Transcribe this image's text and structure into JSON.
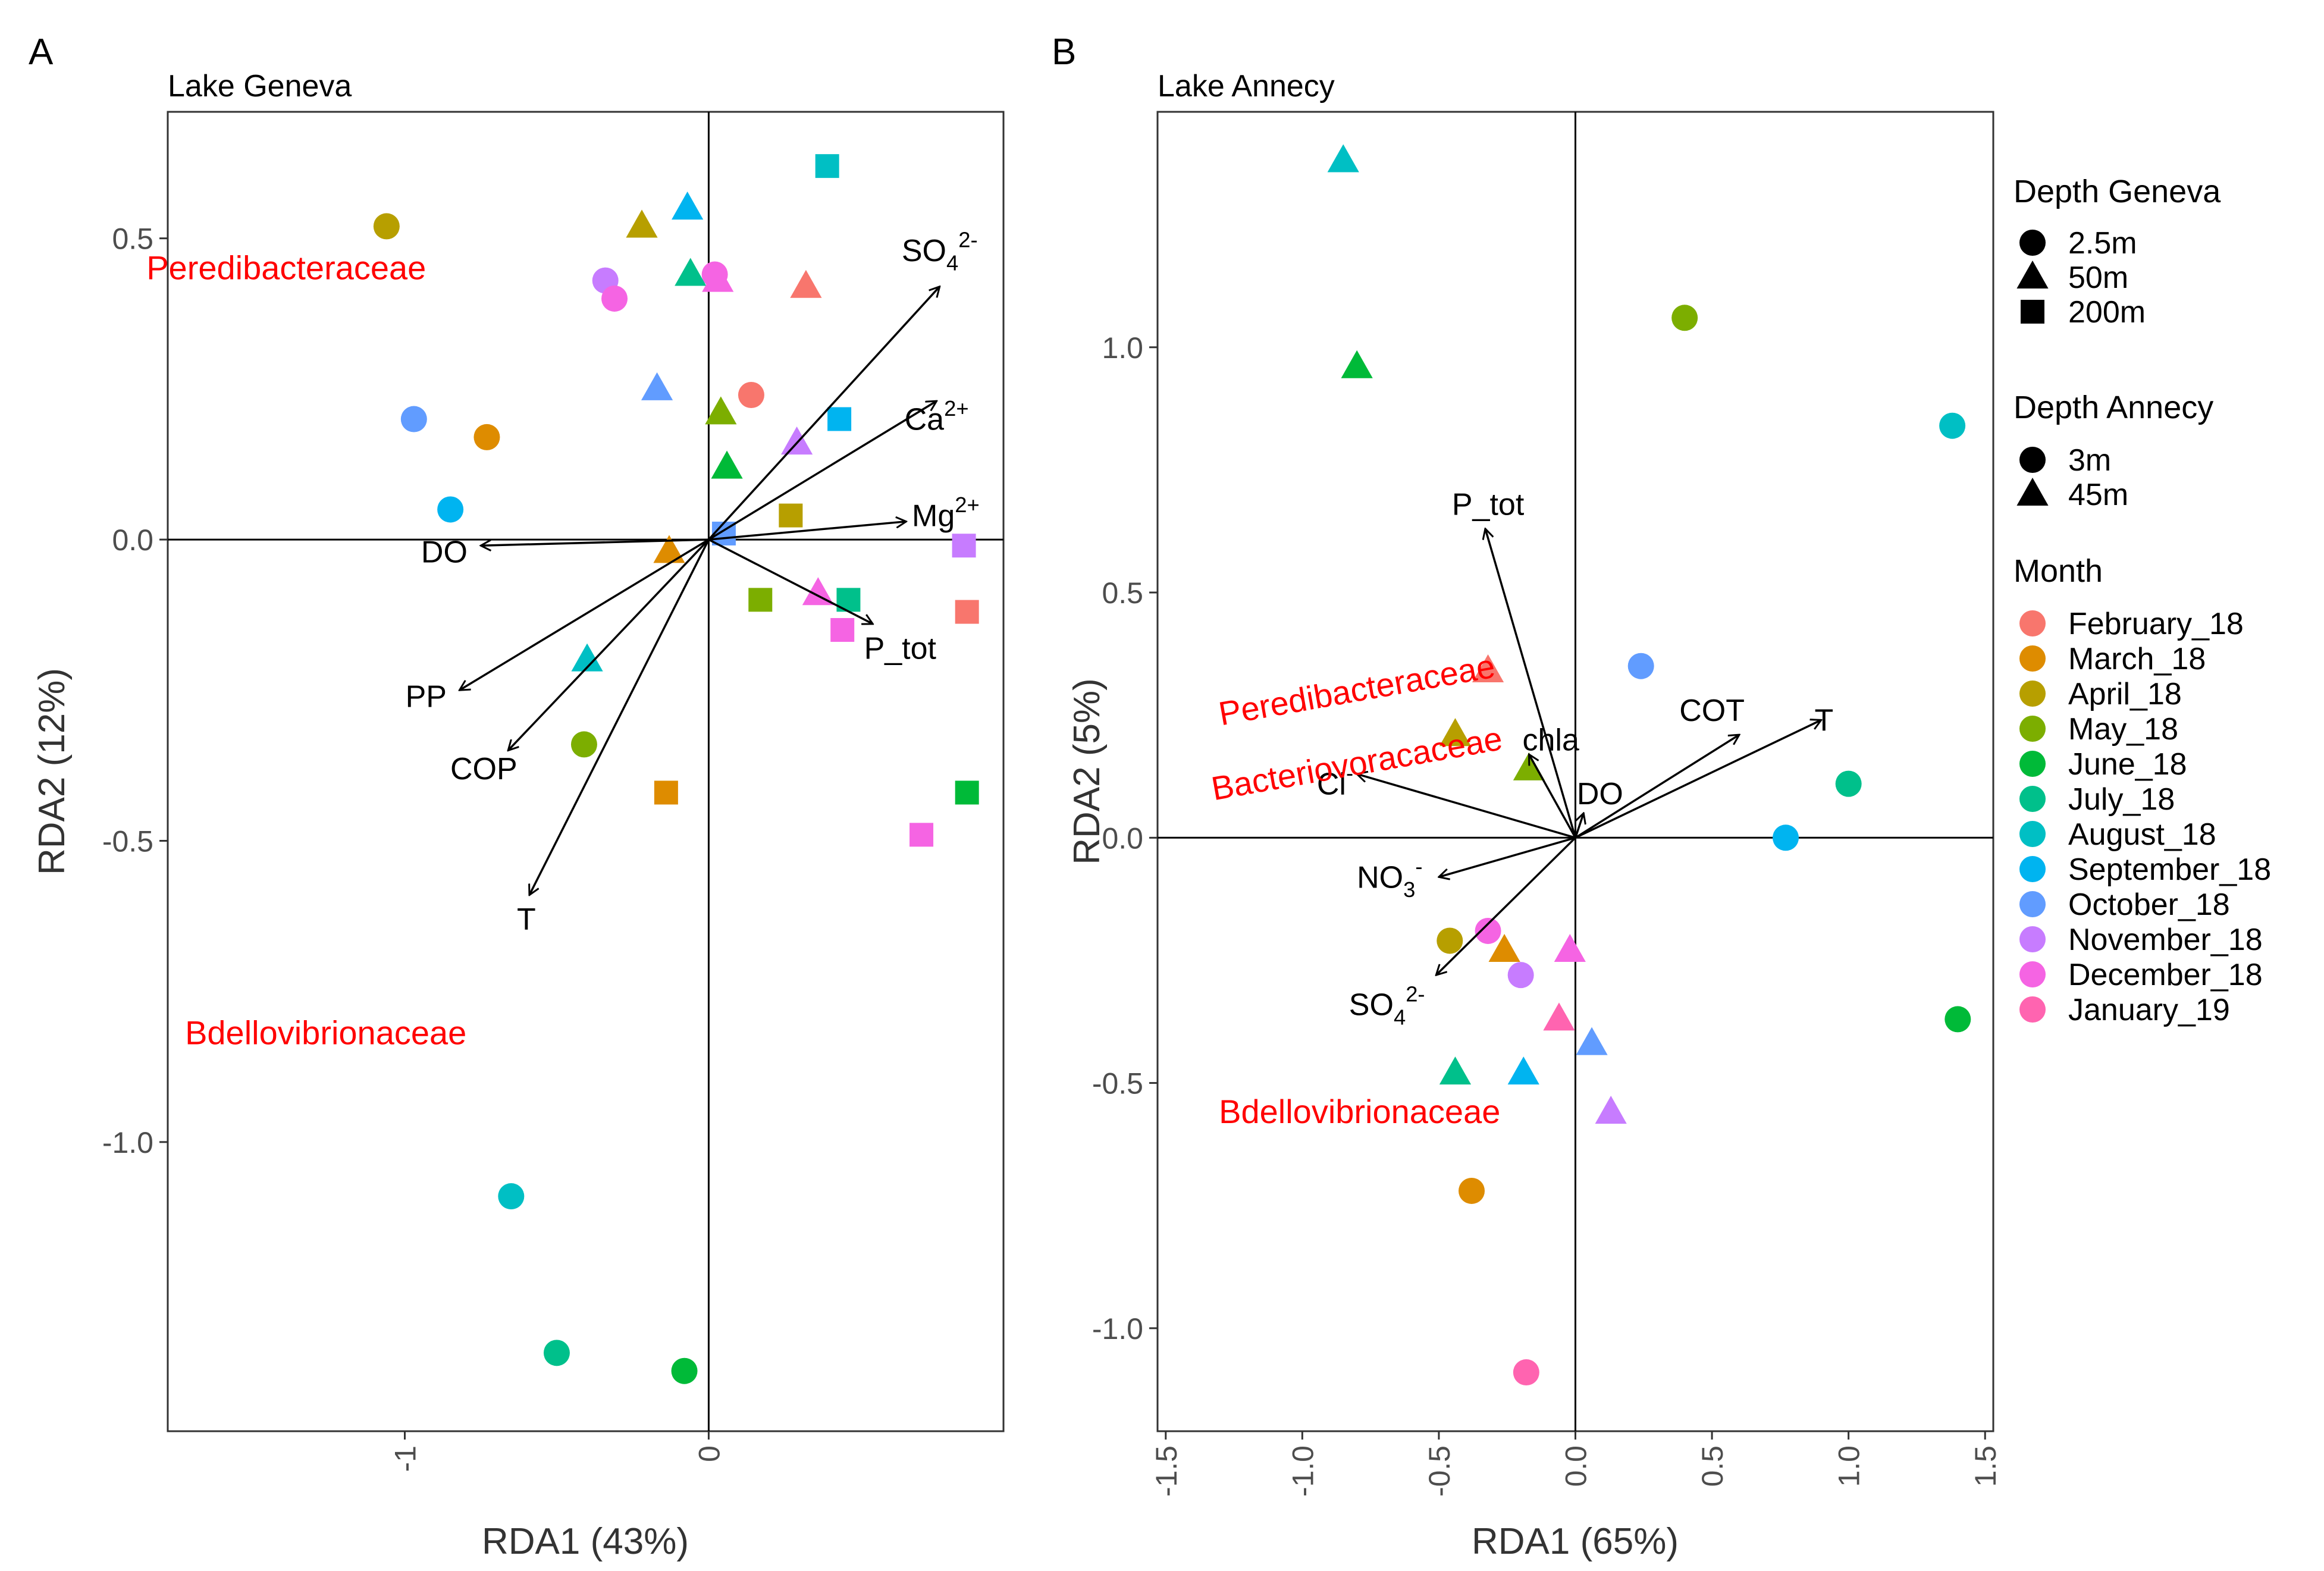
{
  "colors": {
    "February_18": "#F8766D",
    "March_18": "#DE8C00",
    "April_18": "#B79F00",
    "May_18": "#7CAE00",
    "June_18": "#00BA38",
    "July_18": "#00C08B",
    "August_18": "#00BFC4",
    "September_18": "#00B4F0",
    "October_18": "#619CFF",
    "November_18": "#C77CFF",
    "December_18": "#F564E3",
    "January_19": "#FF64B0",
    "taxon_label": "#FF0000"
  },
  "chart_data": [
    {
      "type": "scatter",
      "panel_letter": "A",
      "title": "Lake Geneva",
      "xlabel": "RDA1 (43%)",
      "ylabel": "RDA2 (12%)",
      "xlim": [
        -1.78,
        0.97
      ],
      "ylim": [
        -1.48,
        0.71
      ],
      "xticks": [
        -1,
        0
      ],
      "xtick_labels": [
        "-1",
        "0"
      ],
      "yticks": [
        -1.0,
        -0.5,
        0.0,
        0.5
      ],
      "ytick_labels": [
        "-1.0",
        "-0.5",
        "0.0",
        "0.5"
      ],
      "grid": false,
      "points": [
        {
          "month": "April_18",
          "depth": "2.5m",
          "x": -1.06,
          "y": 0.52
        },
        {
          "month": "November_18",
          "depth": "2.5m",
          "x": -0.34,
          "y": 0.43
        },
        {
          "month": "December_18",
          "depth": "2.5m",
          "x": -0.31,
          "y": 0.4
        },
        {
          "month": "December_18",
          "depth": "2.5m",
          "x": 0.02,
          "y": 0.44
        },
        {
          "month": "February_18",
          "depth": "2.5m",
          "x": 0.14,
          "y": 0.24
        },
        {
          "month": "October_18",
          "depth": "2.5m",
          "x": -0.97,
          "y": 0.2
        },
        {
          "month": "March_18",
          "depth": "2.5m",
          "x": -0.73,
          "y": 0.17
        },
        {
          "month": "September_18",
          "depth": "2.5m",
          "x": -0.85,
          "y": 0.05
        },
        {
          "month": "May_18",
          "depth": "2.5m",
          "x": -0.41,
          "y": -0.34
        },
        {
          "month": "August_18",
          "depth": "2.5m",
          "x": -0.65,
          "y": -1.09
        },
        {
          "month": "July_18",
          "depth": "2.5m",
          "x": -0.5,
          "y": -1.35
        },
        {
          "month": "June_18",
          "depth": "2.5m",
          "x": -0.08,
          "y": -1.38
        },
        {
          "month": "April_18",
          "depth": "50m",
          "x": -0.22,
          "y": 0.52
        },
        {
          "month": "September_18",
          "depth": "50m",
          "x": -0.07,
          "y": 0.55
        },
        {
          "month": "July_18",
          "depth": "50m",
          "x": -0.06,
          "y": 0.44
        },
        {
          "month": "December_18",
          "depth": "50m",
          "x": 0.03,
          "y": 0.43
        },
        {
          "month": "February_18",
          "depth": "50m",
          "x": 0.32,
          "y": 0.42
        },
        {
          "month": "October_18",
          "depth": "50m",
          "x": -0.17,
          "y": 0.25
        },
        {
          "month": "May_18",
          "depth": "50m",
          "x": 0.04,
          "y": 0.21
        },
        {
          "month": "November_18",
          "depth": "50m",
          "x": 0.29,
          "y": 0.16
        },
        {
          "month": "June_18",
          "depth": "50m",
          "x": 0.06,
          "y": 0.12
        },
        {
          "month": "March_18",
          "depth": "50m",
          "x": -0.13,
          "y": -0.02
        },
        {
          "month": "December_18",
          "depth": "50m",
          "x": 0.36,
          "y": -0.09
        },
        {
          "month": "August_18",
          "depth": "50m",
          "x": -0.4,
          "y": -0.2
        },
        {
          "month": "August_18",
          "depth": "200m",
          "x": 0.39,
          "y": 0.62
        },
        {
          "month": "September_18",
          "depth": "200m",
          "x": 0.43,
          "y": 0.2
        },
        {
          "month": "April_18",
          "depth": "200m",
          "x": 0.27,
          "y": 0.04
        },
        {
          "month": "October_18",
          "depth": "200m",
          "x": 0.05,
          "y": 0.01
        },
        {
          "month": "November_18",
          "depth": "200m",
          "x": 0.84,
          "y": -0.01
        },
        {
          "month": "May_18",
          "depth": "200m",
          "x": 0.17,
          "y": -0.1
        },
        {
          "month": "July_18",
          "depth": "200m",
          "x": 0.46,
          "y": -0.1
        },
        {
          "month": "February_18",
          "depth": "200m",
          "x": 0.85,
          "y": -0.12
        },
        {
          "month": "December_18",
          "depth": "200m",
          "x": 0.44,
          "y": -0.15
        },
        {
          "month": "March_18",
          "depth": "200m",
          "x": -0.14,
          "y": -0.42
        },
        {
          "month": "June_18",
          "depth": "200m",
          "x": 0.85,
          "y": -0.42
        },
        {
          "month": "December_18",
          "depth": "200m",
          "x": 0.7,
          "y": -0.49
        }
      ],
      "vectors": [
        {
          "label": "SO4",
          "sup": "2-",
          "sub": "4",
          "x": 0.76,
          "y": 0.42,
          "lx": 0.76,
          "ly": 0.48
        },
        {
          "label": "Ca",
          "sup": "2+",
          "x": 0.75,
          "y": 0.23,
          "lx": 0.75,
          "ly": 0.2
        },
        {
          "label": "Mg",
          "sup": "2+",
          "x": 0.65,
          "y": 0.03,
          "lx": 0.78,
          "ly": 0.04
        },
        {
          "label": "P_tot",
          "x": 0.54,
          "y": -0.14,
          "lx": 0.63,
          "ly": -0.18
        },
        {
          "label": "DO",
          "x": -0.75,
          "y": -0.01,
          "lx": -0.87,
          "ly": -0.02
        },
        {
          "label": "PP",
          "x": -0.82,
          "y": -0.25,
          "lx": -0.93,
          "ly": -0.26
        },
        {
          "label": "COP",
          "x": -0.66,
          "y": -0.35,
          "lx": -0.74,
          "ly": -0.38
        },
        {
          "label": "T",
          "x": -0.59,
          "y": -0.59,
          "lx": -0.6,
          "ly": -0.63
        }
      ],
      "taxa": [
        {
          "label": "Peredibacteraceae",
          "x": -1.39,
          "y": 0.45
        },
        {
          "label": "Bdellovibrionaceae",
          "x": -1.26,
          "y": -0.82
        }
      ]
    },
    {
      "type": "scatter",
      "panel_letter": "B",
      "title": "Lake Annecy",
      "xlabel": "RDA1 (65%)",
      "ylabel": "RDA2 (5%)",
      "xlim": [
        -1.53,
        1.53
      ],
      "ylim": [
        -1.21,
        1.48
      ],
      "xticks": [
        -1.5,
        -1.0,
        -0.5,
        0.0,
        0.5,
        1.0,
        1.5
      ],
      "xtick_labels": [
        "-1.5",
        "-1.0",
        "-0.5",
        "0.0",
        "0.5",
        "1.0",
        "1.5"
      ],
      "yticks": [
        -1.0,
        -0.5,
        0.0,
        0.5,
        1.0
      ],
      "ytick_labels": [
        "-1.0",
        "-0.5",
        "0.0",
        "0.5",
        "1.0"
      ],
      "grid": false,
      "points": [
        {
          "month": "May_18",
          "depth": "3m",
          "x": 0.4,
          "y": 1.06
        },
        {
          "month": "August_18",
          "depth": "3m",
          "x": 1.38,
          "y": 0.84
        },
        {
          "month": "October_18",
          "depth": "3m",
          "x": 0.24,
          "y": 0.35
        },
        {
          "month": "July_18",
          "depth": "3m",
          "x": 1.0,
          "y": 0.11
        },
        {
          "month": "September_18",
          "depth": "3m",
          "x": 0.77,
          "y": 0.0
        },
        {
          "month": "April_18",
          "depth": "3m",
          "x": -0.46,
          "y": -0.21
        },
        {
          "month": "December_18",
          "depth": "3m",
          "x": -0.32,
          "y": -0.19
        },
        {
          "month": "November_18",
          "depth": "3m",
          "x": -0.2,
          "y": -0.28
        },
        {
          "month": "June_18",
          "depth": "3m",
          "x": 1.4,
          "y": -0.37
        },
        {
          "month": "March_18",
          "depth": "3m",
          "x": -0.38,
          "y": -0.72
        },
        {
          "month": "January_19",
          "depth": "3m",
          "x": -0.18,
          "y": -1.09
        },
        {
          "month": "August_18",
          "depth": "45m",
          "x": -0.85,
          "y": 1.38
        },
        {
          "month": "June_18",
          "depth": "45m",
          "x": -0.8,
          "y": 0.96
        },
        {
          "month": "February_18",
          "depth": "45m",
          "x": -0.32,
          "y": 0.34
        },
        {
          "month": "April_18",
          "depth": "45m",
          "x": -0.44,
          "y": 0.21
        },
        {
          "month": "May_18",
          "depth": "45m",
          "x": -0.17,
          "y": 0.14
        },
        {
          "month": "March_18",
          "depth": "45m",
          "x": -0.26,
          "y": -0.23
        },
        {
          "month": "December_18",
          "depth": "45m",
          "x": -0.02,
          "y": -0.23
        },
        {
          "month": "January_19",
          "depth": "45m",
          "x": -0.06,
          "y": -0.37
        },
        {
          "month": "October_18",
          "depth": "45m",
          "x": 0.06,
          "y": -0.42
        },
        {
          "month": "July_18",
          "depth": "45m",
          "x": -0.44,
          "y": -0.48
        },
        {
          "month": "September_18",
          "depth": "45m",
          "x": -0.19,
          "y": -0.48
        },
        {
          "month": "November_18",
          "depth": "45m",
          "x": 0.13,
          "y": -0.56
        }
      ],
      "vectors": [
        {
          "label": "P_tot",
          "x": -0.33,
          "y": 0.63,
          "lx": -0.32,
          "ly": 0.68
        },
        {
          "label": "COT",
          "x": 0.6,
          "y": 0.21,
          "lx": 0.5,
          "ly": 0.26
        },
        {
          "label": "T",
          "x": 0.9,
          "y": 0.24,
          "lx": 0.91,
          "ly": 0.24
        },
        {
          "label": "chla",
          "x": -0.17,
          "y": 0.17,
          "lx": -0.09,
          "ly": 0.2
        },
        {
          "label": "DO",
          "x": 0.03,
          "y": 0.05,
          "lx": 0.09,
          "ly": 0.09
        },
        {
          "label": "Cl",
          "sup": "-",
          "x": -0.8,
          "y": 0.13,
          "lx": -0.88,
          "ly": 0.11
        },
        {
          "label": "NO3",
          "sup": "-",
          "sub": "3",
          "x": -0.5,
          "y": -0.08,
          "lx": -0.68,
          "ly": -0.08
        },
        {
          "label": "SO4",
          "sup": "2-",
          "sub": "4",
          "x": -0.51,
          "y": -0.28,
          "lx": -0.69,
          "ly": -0.34
        }
      ],
      "taxa": [
        {
          "label": "Peredibacteraceae",
          "x": -0.8,
          "y": 0.3,
          "rotate": -10
        },
        {
          "label": "Bacteriovoracaceae",
          "x": -0.8,
          "y": 0.15,
          "rotate": -10
        },
        {
          "label": "Bdellovibrionaceae",
          "x": -0.79,
          "y": -0.56
        }
      ]
    }
  ],
  "legend": {
    "depth_geneva": {
      "title": "Depth Geneva",
      "items": [
        {
          "label": "2.5m",
          "shape": "circle"
        },
        {
          "label": "50m",
          "shape": "triangle"
        },
        {
          "label": "200m",
          "shape": "square"
        }
      ]
    },
    "depth_annecy": {
      "title": "Depth Annecy",
      "items": [
        {
          "label": "3m",
          "shape": "circle"
        },
        {
          "label": "45m",
          "shape": "triangle"
        }
      ]
    },
    "month": {
      "title": "Month",
      "items": [
        "February_18",
        "March_18",
        "April_18",
        "May_18",
        "June_18",
        "July_18",
        "August_18",
        "September_18",
        "October_18",
        "November_18",
        "December_18",
        "January_19"
      ]
    }
  }
}
